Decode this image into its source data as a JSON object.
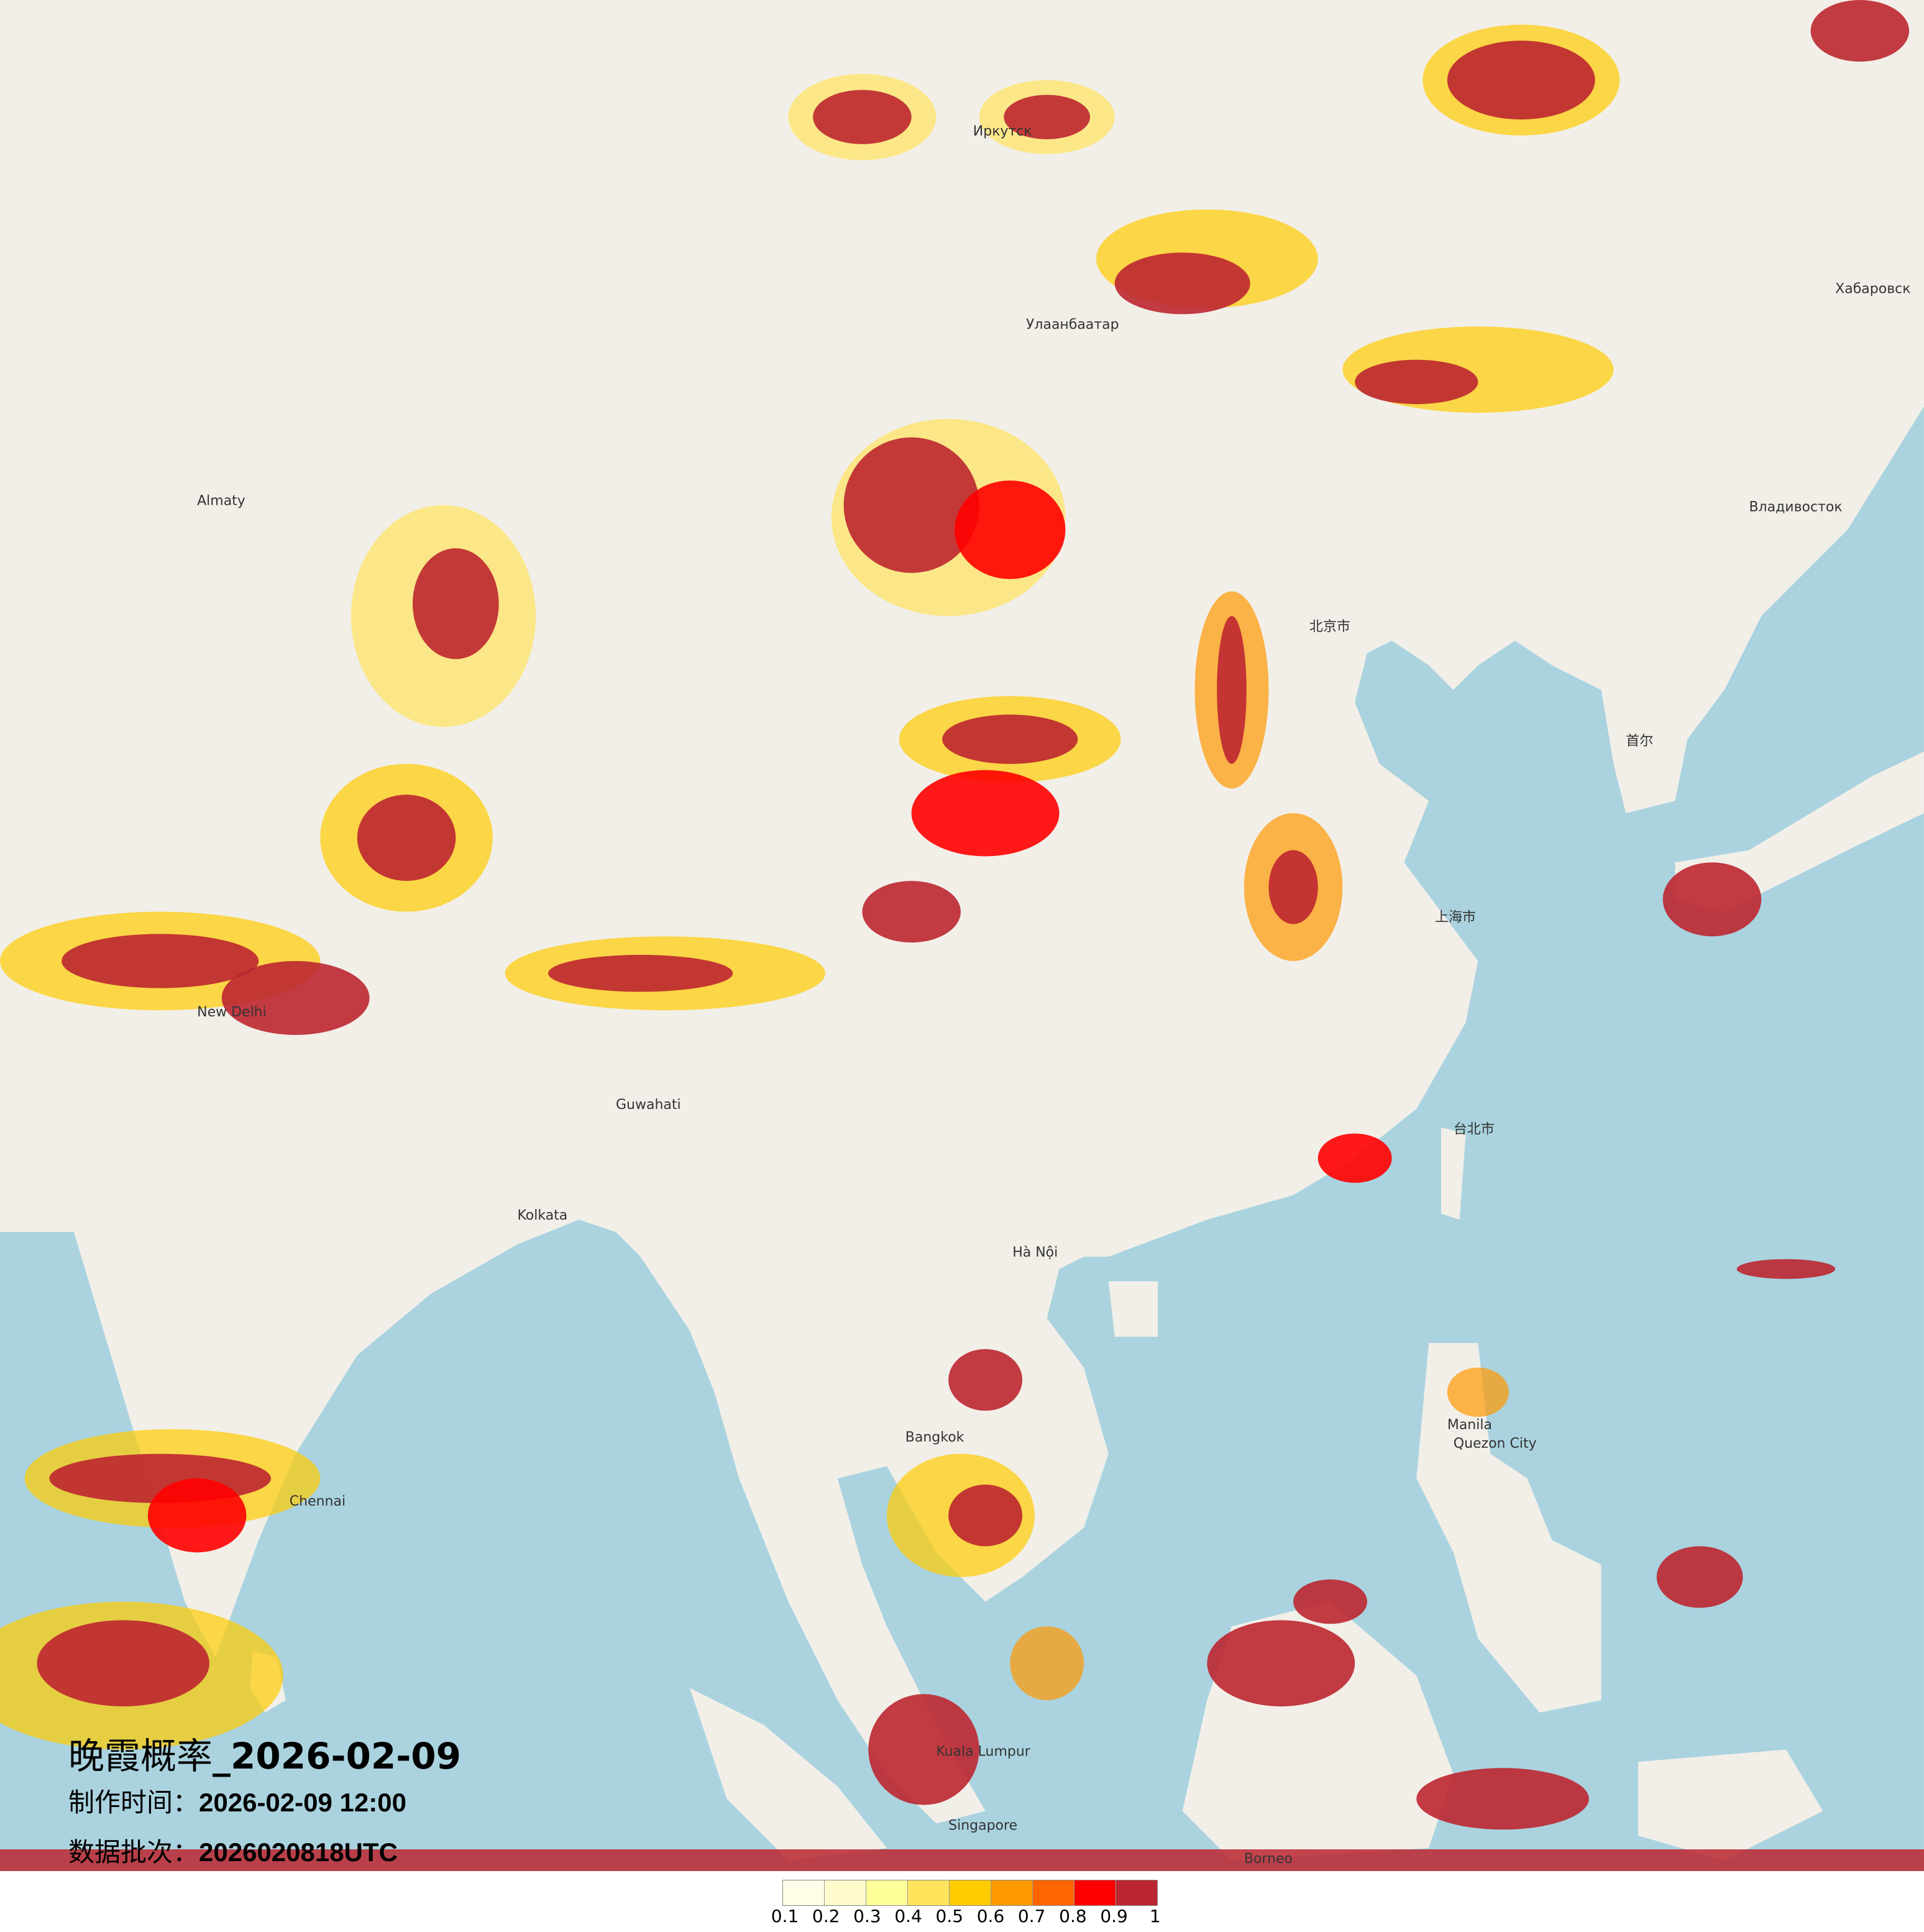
{
  "title": {
    "prefix": "晚霞概率",
    "date": "_2026-02-09"
  },
  "production_time": {
    "label": "制作时间：",
    "value": "2026-02-09 12:00"
  },
  "data_batch": {
    "label": "数据批次：",
    "value": "2026020818UTC"
  },
  "legend": {
    "colors": [
      "#fffde8",
      "#fffbcc",
      "#ffff99",
      "#ffe45c",
      "#ffcc00",
      "#ff9900",
      "#ff6600",
      "#ff0000",
      "#bc2630"
    ],
    "labels": [
      "0.1",
      "0.2",
      "0.3",
      "0.4",
      "0.5",
      "0.6",
      "0.7",
      "0.8",
      "0.9",
      "1"
    ]
  },
  "map_colors": {
    "land": "#f2efe9",
    "sea": "#aad3df"
  },
  "places": [
    "Улаанбаатар",
    "北京市",
    "上海市",
    "Иркутск",
    "Almaty",
    "New Delhi",
    "Hà Nội",
    "Bangkok",
    "Kuala Lumpur",
    "Singapore",
    "Manila",
    "台北市",
    "首尔",
    "Владивосток",
    "Хабаровск",
    "Chennai",
    "Kolkata",
    "Guwahati",
    "Quezon City",
    "Borneo"
  ]
}
